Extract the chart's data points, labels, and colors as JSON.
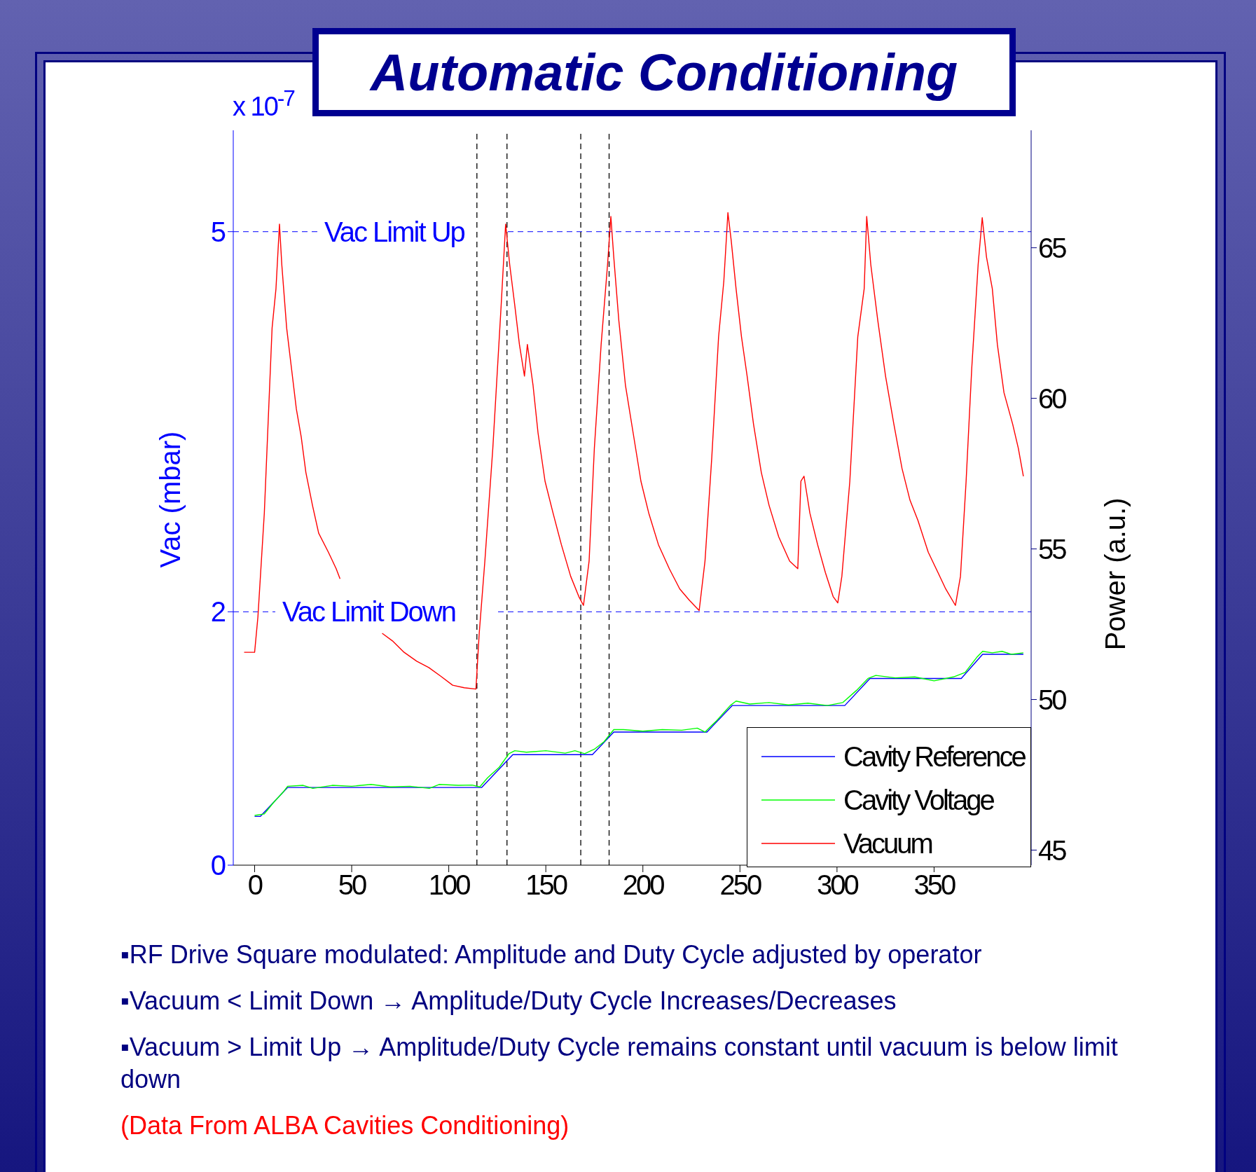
{
  "chart_data": {
    "type": "line",
    "title": "Automatic Conditioning",
    "xlabel": null,
    "ylabel": "Vac (mbar)",
    "y2label": "Power (a.u.)",
    "annotations": [
      "x 10$^{-7}$",
      "▪RF Drive Square modulated: Amplitude and Duty Cycle adjusted by operator",
      "▪Vacuum < Limit Down → Amplitude/Duty Cycle Increases/Decreases",
      "▪Vacuum > Limit Up → Amplitude/Duty Cycle remains constant until vacuum is below limit down",
      "(Data From ALBA Cavities Conditioning)"
    ],
    "xlim": [
      -11,
      400
    ],
    "xticks": [
      0,
      50,
      100,
      150,
      200,
      250,
      300,
      350
    ],
    "ylim": [
      0,
      5.8
    ],
    "yticks": [
      0,
      2,
      5
    ],
    "y2lim": [
      44.5,
      68.9
    ],
    "y2ticks": [
      45,
      50,
      55,
      60,
      65
    ],
    "grid": false,
    "legend": "bottom right",
    "ref_lines": [
      {
        "axis": "y",
        "value": 5,
        "label": "Vac Limit Up",
        "color": "#3333ff",
        "line_style": "dashed"
      },
      {
        "axis": "y",
        "value": 2,
        "label": "Vac Limit Down",
        "color": "#3333ff",
        "line_style": "dashed"
      },
      {
        "axis": "x",
        "value": 114.5,
        "color": "#000000",
        "line_style": "dashed"
      },
      {
        "axis": "x",
        "value": 130,
        "color": "#000000",
        "line_style": "dashed"
      },
      {
        "axis": "x",
        "value": 168,
        "color": "#000000",
        "line_style": "dashed"
      },
      {
        "axis": "x",
        "value": 182.6,
        "color": "#000000",
        "line_style": "dashed"
      }
    ],
    "series": [
      {
        "name": "Cavity Reference",
        "color": "#0000ff",
        "axis": "y2",
        "x": [
          0,
          3,
          17,
          117,
          133,
          174,
          185,
          233,
          246,
          304,
          317,
          364,
          375,
          396
        ],
        "values": [
          46.12,
          46.12,
          47.08,
          47.08,
          48.17,
          48.17,
          48.92,
          48.92,
          49.8,
          49.8,
          50.7,
          50.7,
          51.5,
          51.5
        ]
      },
      {
        "name": "Cavity Voltage",
        "color": "#00ff00",
        "axis": "y2",
        "x": [
          0,
          5,
          10,
          15,
          17,
          25,
          30,
          40,
          50,
          60,
          70,
          80,
          90,
          95,
          105,
          112,
          116,
          120,
          126,
          131,
          134,
          140,
          150,
          160,
          165,
          170,
          175,
          180,
          185,
          190,
          200,
          210,
          220,
          228,
          232,
          238,
          245,
          248,
          255,
          265,
          275,
          285,
          295,
          303,
          310,
          316,
          320,
          330,
          340,
          350,
          360,
          366,
          372,
          375,
          380,
          385,
          390,
          396
        ],
        "values": [
          46.15,
          46.2,
          46.6,
          46.95,
          47.12,
          47.15,
          47.05,
          47.15,
          47.12,
          47.18,
          47.1,
          47.12,
          47.05,
          47.18,
          47.15,
          47.16,
          47.1,
          47.4,
          47.75,
          48.2,
          48.3,
          48.25,
          48.3,
          48.22,
          48.3,
          48.2,
          48.35,
          48.6,
          49.0,
          49.0,
          48.95,
          49.0,
          48.98,
          49.05,
          48.92,
          49.3,
          49.8,
          49.95,
          49.85,
          49.9,
          49.82,
          49.88,
          49.8,
          49.9,
          50.3,
          50.7,
          50.8,
          50.72,
          50.75,
          50.62,
          50.75,
          50.9,
          51.4,
          51.6,
          51.55,
          51.6,
          51.5,
          51.55
        ]
      },
      {
        "name": "Vacuum",
        "color": "#ff0000",
        "x": [
          -5.4,
          0,
          1.7,
          5,
          9,
          11,
          12.8,
          14,
          16.5,
          19,
          21.5,
          24,
          26.4,
          29.8,
          33,
          38,
          42,
          44,
          55,
          65.7,
          71,
          77,
          83.5,
          89.7,
          96,
          102,
          108,
          114,
          115.7,
          118.6,
          122.7,
          127,
          129.3,
          131.4,
          134,
          136.4,
          139,
          140.5,
          143.4,
          146,
          149.6,
          153.7,
          158,
          162.8,
          167,
          169.4,
          172.3,
          175,
          178.5,
          181.8,
          183.5,
          185,
          187.6,
          191,
          195,
          199,
          203,
          208,
          213.6,
          219,
          224,
          229,
          232,
          235.5,
          239,
          241.7,
          243.8,
          245.5,
          248,
          250.8,
          253.7,
          257,
          261,
          265,
          270,
          275.6,
          279.8,
          281.4,
          283,
          286,
          290,
          294,
          298,
          300.4,
          302.5,
          306.6,
          310.7,
          314,
          315.3,
          317.4,
          321,
          325,
          329.3,
          333.5,
          337.6,
          341.7,
          347,
          352,
          356,
          361,
          363.6,
          366.5,
          369.4,
          372.7,
          374.8,
          377,
          380,
          382.6,
          386,
          390.5,
          393.4,
          396
        ],
        "values": [
          1.68,
          1.68,
          1.96,
          2.78,
          4.24,
          4.55,
          5.06,
          4.74,
          4.24,
          3.92,
          3.6,
          3.38,
          3.1,
          2.84,
          2.62,
          2.47,
          2.34,
          2.26,
          null,
          1.83,
          1.77,
          1.68,
          1.61,
          1.56,
          1.49,
          1.42,
          1.4,
          1.39,
          1.83,
          2.4,
          3.29,
          4.42,
          5.06,
          4.74,
          4.42,
          4.11,
          3.86,
          4.11,
          3.79,
          3.41,
          3.03,
          2.78,
          2.53,
          2.28,
          2.12,
          2.05,
          2.4,
          3.29,
          4.11,
          4.74,
          5.12,
          4.8,
          4.3,
          3.79,
          3.41,
          3.03,
          2.78,
          2.53,
          2.34,
          2.18,
          2.09,
          2.01,
          2.4,
          3.22,
          4.17,
          4.61,
          5.15,
          4.93,
          4.55,
          4.17,
          3.86,
          3.48,
          3.1,
          2.84,
          2.59,
          2.4,
          2.34,
          3.03,
          3.07,
          2.78,
          2.53,
          2.31,
          2.12,
          2.07,
          2.28,
          3.03,
          4.17,
          4.55,
          5.12,
          4.74,
          4.3,
          3.86,
          3.48,
          3.13,
          2.88,
          2.72,
          2.47,
          2.31,
          2.18,
          2.05,
          2.28,
          3.03,
          3.92,
          4.74,
          5.11,
          4.8,
          4.55,
          4.11,
          3.73,
          3.48,
          3.29,
          3.07
        ]
      }
    ]
  }
}
